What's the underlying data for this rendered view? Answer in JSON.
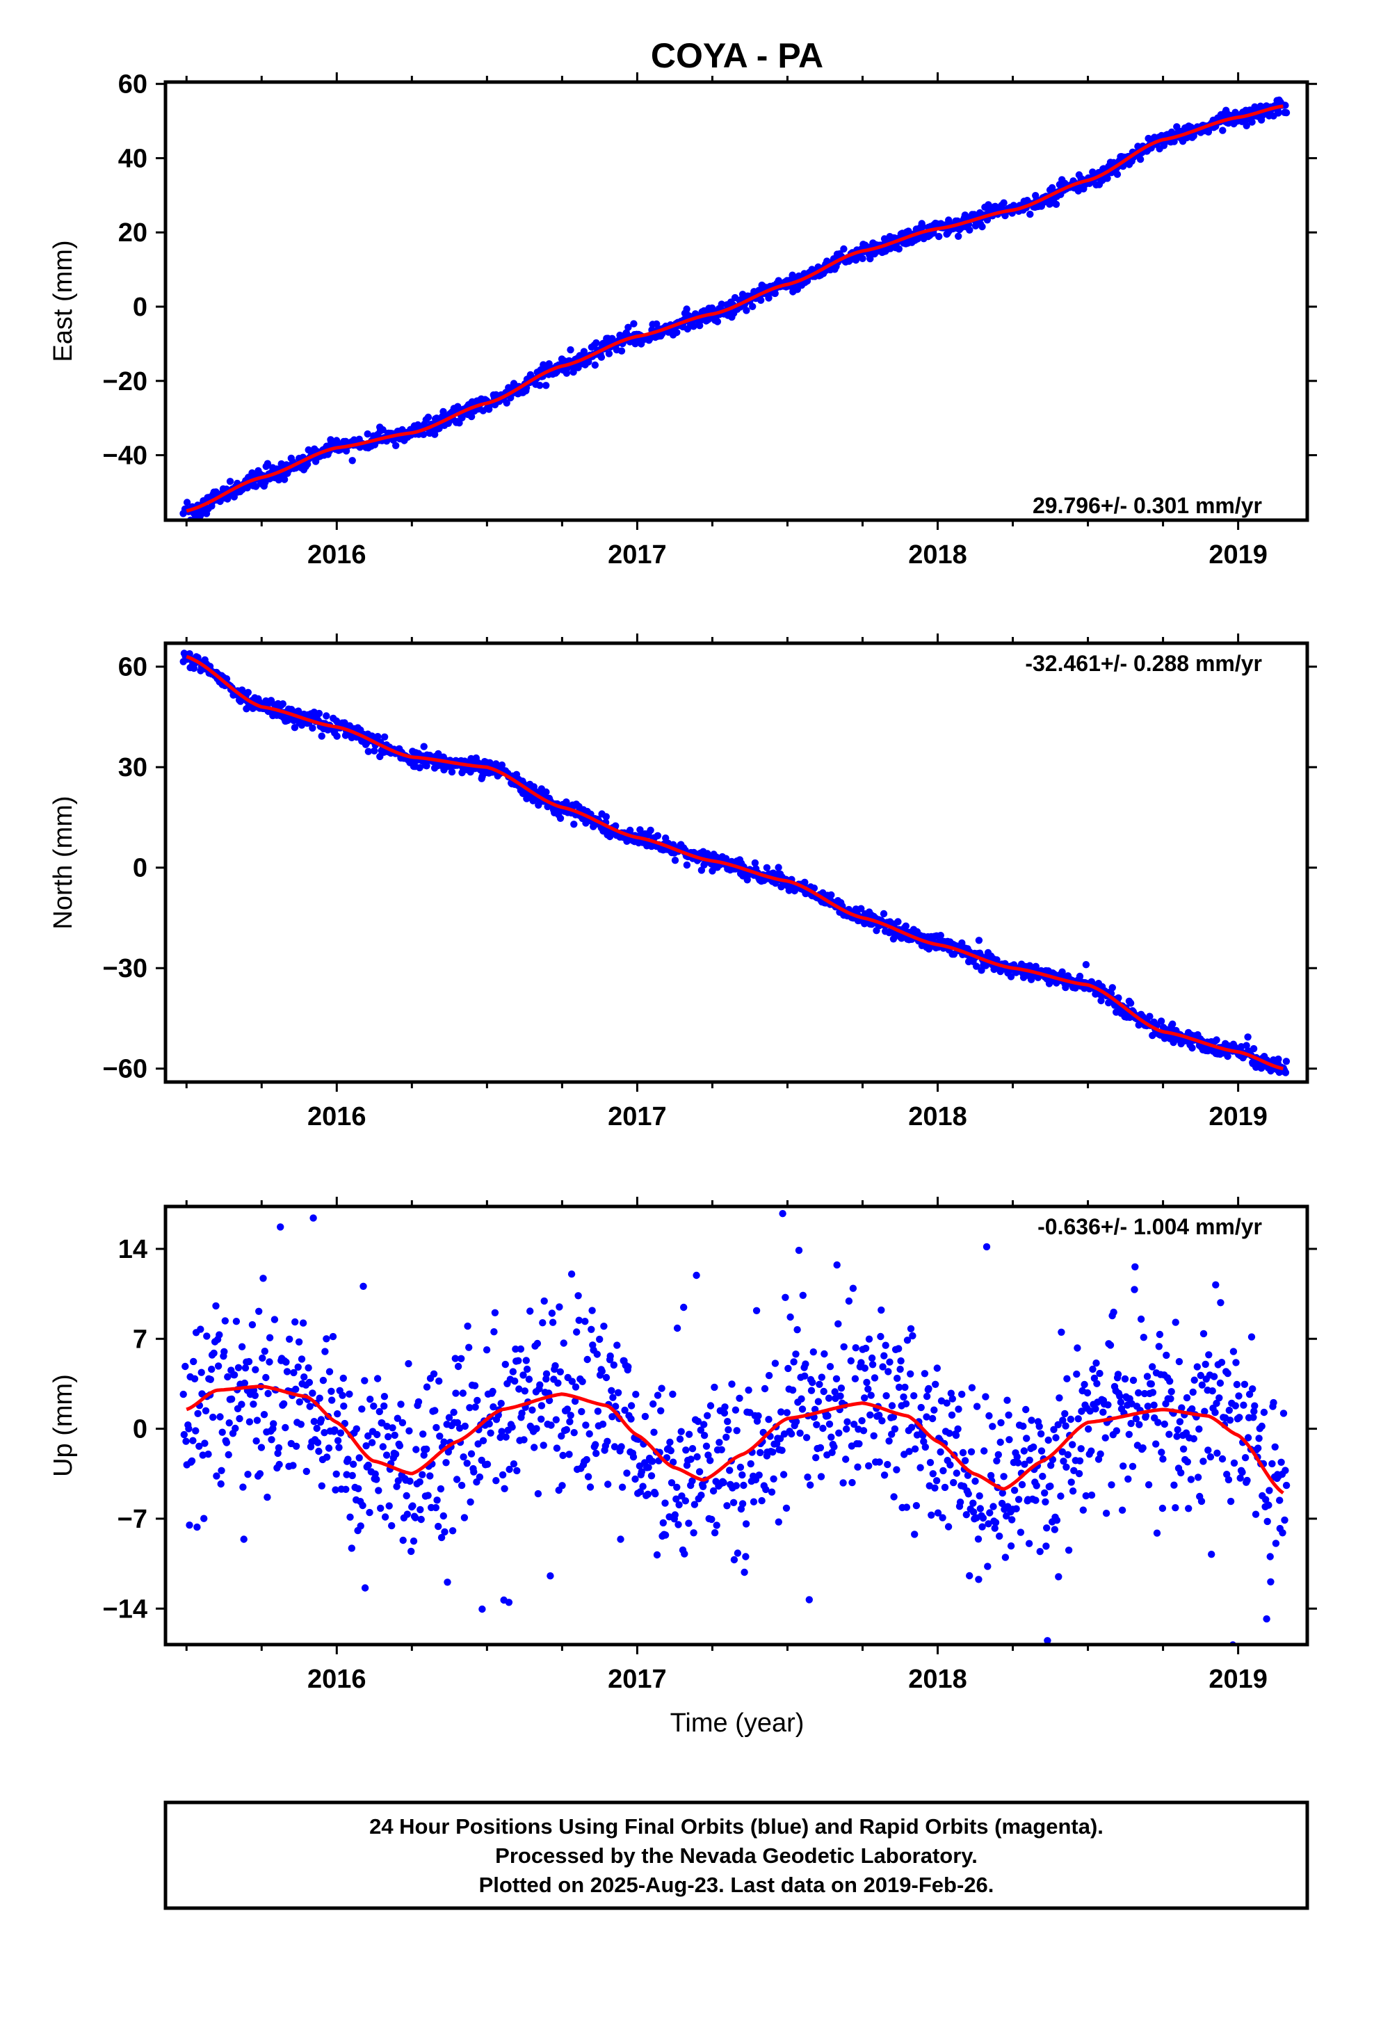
{
  "title": "COYA - PA",
  "xlabel": "Time (year)",
  "footer": {
    "lines": [
      "24 Hour Positions Using Final Orbits (blue) and Rapid Orbits (magenta).",
      "Processed by the Nevada Geodetic Laboratory.",
      "Plotted on 2025-Aug-23. Last data on 2019-Feb-26."
    ]
  },
  "colors": {
    "data": "#0000ff",
    "model": "#ff0000",
    "axes": "#000000"
  },
  "chart_data": [
    {
      "type": "scatter",
      "title": "COYA - PA",
      "ylabel": "East (mm)",
      "rate_label": "29.796+/- 0.301 mm/yr",
      "xlim": [
        2015.43,
        2019.23
      ],
      "ylim": [
        -57.5,
        60.5
      ],
      "xticks": [
        {
          "value": 2016,
          "label": "2016"
        },
        {
          "value": 2017,
          "label": "2017"
        },
        {
          "value": 2018,
          "label": "2018"
        },
        {
          "value": 2019,
          "label": "2019"
        }
      ],
      "yticks": [
        {
          "value": -40,
          "label": "−40"
        },
        {
          "value": -20,
          "label": "−20"
        },
        {
          "value": 0,
          "label": "0"
        },
        {
          "value": 20,
          "label": "20"
        },
        {
          "value": 40,
          "label": "40"
        },
        {
          "value": 60,
          "label": "60"
        }
      ],
      "model": {
        "x": [
          2015.5,
          2015.75,
          2016.0,
          2016.25,
          2016.5,
          2016.75,
          2017.0,
          2017.25,
          2017.5,
          2017.75,
          2018.0,
          2018.25,
          2018.5,
          2018.75,
          2019.0,
          2019.15
        ],
        "y": [
          -55,
          -46,
          -38,
          -34,
          -26,
          -16,
          -8,
          -2,
          6,
          15,
          21,
          26,
          34,
          45,
          51,
          54
        ]
      },
      "noise": 1.2,
      "outlier_rate": 0.0,
      "point_count": 1300
    },
    {
      "type": "scatter",
      "ylabel": "North (mm)",
      "rate_label": "-32.461+/- 0.288 mm/yr",
      "xlim": [
        2015.43,
        2019.23
      ],
      "ylim": [
        -64,
        67
      ],
      "xticks": [
        {
          "value": 2016,
          "label": "2016"
        },
        {
          "value": 2017,
          "label": "2017"
        },
        {
          "value": 2018,
          "label": "2018"
        },
        {
          "value": 2019,
          "label": "2019"
        }
      ],
      "yticks": [
        {
          "value": -60,
          "label": "−60"
        },
        {
          "value": -30,
          "label": "−30"
        },
        {
          "value": 0,
          "label": "0"
        },
        {
          "value": 30,
          "label": "30"
        },
        {
          "value": 60,
          "label": "60"
        }
      ],
      "model": {
        "x": [
          2015.5,
          2015.75,
          2016.0,
          2016.25,
          2016.5,
          2016.75,
          2017.0,
          2017.25,
          2017.5,
          2017.75,
          2018.0,
          2018.25,
          2018.5,
          2018.75,
          2019.0,
          2019.15
        ],
        "y": [
          63,
          48,
          42,
          33,
          30,
          18,
          9,
          2,
          -4,
          -15,
          -23,
          -30,
          -35,
          -49,
          -55,
          -60
        ]
      },
      "noise": 1.2,
      "outlier_rate": 0.005,
      "point_count": 1300
    },
    {
      "type": "scatter",
      "ylabel": "Up (mm)",
      "rate_label": "-0.636+/- 1.004 mm/yr",
      "xlim": [
        2015.43,
        2019.23
      ],
      "ylim": [
        -16.8,
        17.3
      ],
      "xticks": [
        {
          "value": 2016,
          "label": "2016"
        },
        {
          "value": 2017,
          "label": "2017"
        },
        {
          "value": 2018,
          "label": "2018"
        },
        {
          "value": 2019,
          "label": "2019"
        }
      ],
      "yticks": [
        {
          "value": -14,
          "label": "−14"
        },
        {
          "value": -7,
          "label": "−7"
        },
        {
          "value": 0,
          "label": "0"
        },
        {
          "value": 7,
          "label": "7"
        },
        {
          "value": 14,
          "label": "14"
        }
      ],
      "model": {
        "x": [
          2015.5,
          2015.6,
          2015.75,
          2015.9,
          2016.0,
          2016.12,
          2016.25,
          2016.4,
          2016.55,
          2016.75,
          2016.9,
          2017.0,
          2017.12,
          2017.22,
          2017.35,
          2017.5,
          2017.75,
          2017.9,
          2018.0,
          2018.12,
          2018.22,
          2018.35,
          2018.5,
          2018.75,
          2018.9,
          2019.0,
          2019.15
        ],
        "y": [
          1.5,
          3.0,
          3.3,
          2.5,
          0.5,
          -2.5,
          -3.5,
          -1.0,
          1.5,
          2.7,
          1.8,
          -0.5,
          -3.0,
          -4.0,
          -2.0,
          0.8,
          2.0,
          1.0,
          -1.0,
          -3.5,
          -4.7,
          -2.5,
          0.5,
          1.5,
          1.0,
          -0.5,
          -5.0
        ]
      },
      "noise": 3.6,
      "outlier_rate": 0.03,
      "point_count": 1300
    }
  ]
}
